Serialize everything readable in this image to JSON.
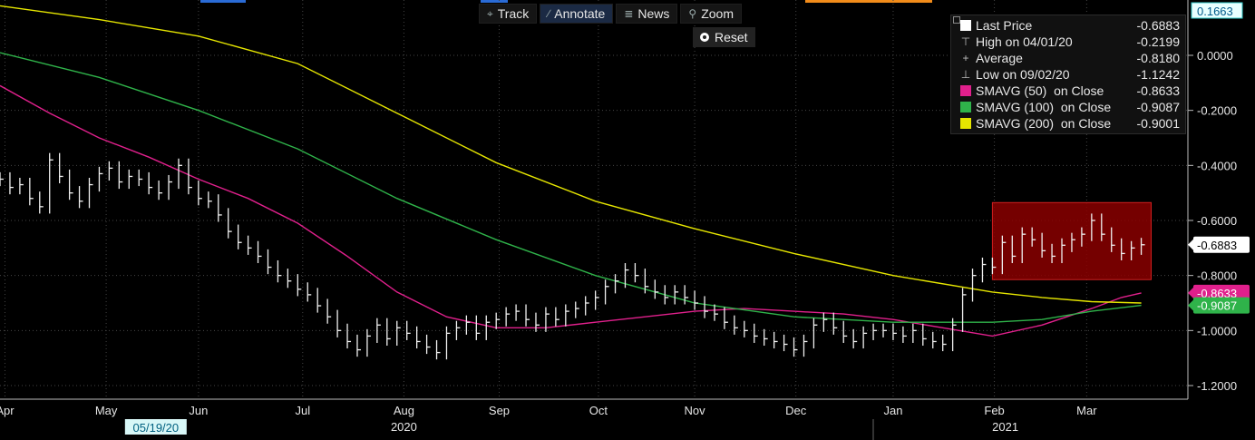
{
  "toolbar": {
    "buttons": [
      {
        "icon": "crosshair-icon",
        "label": "Track",
        "active": false
      },
      {
        "icon": "pencil-icon",
        "label": "Annotate",
        "active": true
      },
      {
        "icon": "news-icon",
        "label": "News",
        "active": false
      },
      {
        "icon": "magnifier-icon",
        "label": "Zoom",
        "active": false
      }
    ],
    "reset_label": "Reset"
  },
  "legend": {
    "rows": [
      {
        "icon": "square",
        "color": "#ffffff",
        "label": "Last Price",
        "value": "-0.6883"
      },
      {
        "icon": "high-marker-icon",
        "label": "High on 04/01/20",
        "value": "-0.2199"
      },
      {
        "icon": "average-marker-icon",
        "label": "Average",
        "value": "-0.8180"
      },
      {
        "icon": "low-marker-icon",
        "label": "Low on 09/02/20",
        "value": "-1.1242"
      },
      {
        "icon": "square",
        "color": "#e0208c",
        "label": "SMAVG (50)  on Close",
        "value": "-0.8633"
      },
      {
        "icon": "square",
        "color": "#2fb34a",
        "label": "SMAVG (100)  on Close",
        "value": "-0.9087"
      },
      {
        "icon": "square",
        "color": "#e6e600",
        "label": "SMAVG (200)  on Close",
        "value": "-0.9001"
      }
    ]
  },
  "chart_data": {
    "type": "line",
    "y_axis": {
      "min": -1.25,
      "max": 0.2,
      "ticks": [
        "0.0000",
        "-0.2000",
        "-0.4000",
        "-0.6000",
        "-0.8000",
        "-1.0000",
        "-1.2000"
      ],
      "tick_values": [
        0,
        -0.2,
        -0.4,
        -0.6,
        -0.8,
        -1.0,
        -1.2
      ],
      "top_label": "0.1663",
      "position": "right"
    },
    "x_axis": {
      "months": [
        "Apr",
        "May",
        "Jun",
        "Jul",
        "Aug",
        "Sep",
        "Oct",
        "Nov",
        "Dec",
        "Jan",
        "Feb",
        "Mar"
      ],
      "month_index": [
        0.05,
        1.07,
        2.0,
        3.05,
        4.07,
        5.03,
        6.03,
        7.0,
        8.02,
        9.0,
        10.02,
        10.95
      ],
      "years": [
        {
          "label": "2020",
          "at": 4.07
        },
        {
          "label": "2021",
          "at": 10.13
        }
      ],
      "cursor_label": "05/19/20",
      "cursor_at": 1.57,
      "start": "2020-04-01",
      "end": "2021-03-19"
    },
    "series": [
      {
        "name": "Last Price",
        "color": "#ffffff",
        "style": "hl-bars",
        "x": [
          0,
          0.1,
          0.2,
          0.3,
          0.4,
          0.5,
          0.6,
          0.7,
          0.8,
          0.9,
          1.0,
          1.1,
          1.2,
          1.3,
          1.4,
          1.5,
          1.6,
          1.7,
          1.8,
          1.9,
          2.0,
          2.1,
          2.2,
          2.3,
          2.4,
          2.5,
          2.6,
          2.7,
          2.8,
          2.9,
          3.0,
          3.1,
          3.2,
          3.3,
          3.4,
          3.5,
          3.6,
          3.7,
          3.8,
          3.9,
          4.0,
          4.1,
          4.2,
          4.3,
          4.4,
          4.5,
          4.6,
          4.7,
          4.8,
          4.9,
          5.0,
          5.1,
          5.2,
          5.3,
          5.4,
          5.5,
          5.6,
          5.7,
          5.8,
          5.9,
          6.0,
          6.1,
          6.2,
          6.3,
          6.4,
          6.5,
          6.6,
          6.7,
          6.8,
          6.9,
          7.0,
          7.1,
          7.2,
          7.3,
          7.4,
          7.5,
          7.6,
          7.7,
          7.8,
          7.9,
          8.0,
          8.1,
          8.2,
          8.3,
          8.4,
          8.5,
          8.6,
          8.7,
          8.8,
          8.9,
          9.0,
          9.1,
          9.2,
          9.3,
          9.4,
          9.5,
          9.6,
          9.7,
          9.8,
          9.9,
          10.0,
          10.1,
          10.2,
          10.3,
          10.4,
          10.5,
          10.6,
          10.7,
          10.8,
          10.9,
          11.0,
          11.1,
          11.2,
          11.3,
          11.4,
          11.5
        ],
        "values": [
          -0.45,
          -0.48,
          -0.47,
          -0.52,
          -0.55,
          -0.38,
          -0.44,
          -0.5,
          -0.53,
          -0.47,
          -0.43,
          -0.41,
          -0.46,
          -0.44,
          -0.45,
          -0.48,
          -0.5,
          -0.46,
          -0.4,
          -0.48,
          -0.52,
          -0.53,
          -0.58,
          -0.64,
          -0.68,
          -0.7,
          -0.73,
          -0.77,
          -0.8,
          -0.82,
          -0.85,
          -0.87,
          -0.91,
          -0.95,
          -1.0,
          -1.04,
          -1.07,
          -1.02,
          -0.98,
          -1.03,
          -0.99,
          -1.01,
          -1.04,
          -1.06,
          -1.08,
          -1.01,
          -0.99,
          -0.97,
          -1.01,
          -0.97,
          -0.96,
          -0.94,
          -0.93,
          -0.96,
          -0.98,
          -0.94,
          -0.96,
          -0.93,
          -0.92,
          -0.9,
          -0.88,
          -0.84,
          -0.82,
          -0.78,
          -0.8,
          -0.84,
          -0.86,
          -0.88,
          -0.86,
          -0.88,
          -0.9,
          -0.93,
          -0.94,
          -0.97,
          -0.99,
          -1.0,
          -1.02,
          -1.03,
          -1.04,
          -1.05,
          -1.07,
          -1.04,
          -0.98,
          -0.96,
          -0.99,
          -1.02,
          -1.04,
          -1.01,
          -1.0,
          -1.0,
          -1.01,
          -1.02,
          -1.0,
          -1.03,
          -1.04,
          -1.05,
          -0.98,
          -0.87,
          -0.8,
          -0.76,
          -0.77,
          -0.68,
          -0.73,
          -0.65,
          -0.67,
          -0.71,
          -0.73,
          -0.69,
          -0.67,
          -0.65,
          -0.6,
          -0.65,
          -0.69,
          -0.72,
          -0.7,
          -0.6883
        ]
      },
      {
        "name": "SMAVG (50)  on Close",
        "color": "#e0208c",
        "style": "line",
        "x": [
          0,
          0.5,
          1.0,
          1.5,
          2.0,
          2.5,
          3.0,
          3.5,
          4.0,
          4.5,
          5.0,
          5.5,
          6.0,
          6.5,
          7.0,
          7.5,
          8.0,
          8.5,
          9.0,
          9.5,
          10.0,
          10.5,
          11.0,
          11.3,
          11.5
        ],
        "values": [
          -0.11,
          -0.21,
          -0.3,
          -0.37,
          -0.45,
          -0.52,
          -0.61,
          -0.73,
          -0.86,
          -0.95,
          -0.99,
          -0.99,
          -0.97,
          -0.95,
          -0.93,
          -0.92,
          -0.93,
          -0.94,
          -0.96,
          -0.99,
          -1.02,
          -0.98,
          -0.92,
          -0.88,
          -0.8633
        ]
      },
      {
        "name": "SMAVG (100)  on Close",
        "color": "#2fb34a",
        "style": "line",
        "x": [
          0,
          1.0,
          2.0,
          3.0,
          4.0,
          5.0,
          6.0,
          7.0,
          8.0,
          9.0,
          10.0,
          10.5,
          11.0,
          11.5
        ],
        "values": [
          0.01,
          -0.08,
          -0.2,
          -0.34,
          -0.52,
          -0.67,
          -0.8,
          -0.9,
          -0.95,
          -0.97,
          -0.97,
          -0.96,
          -0.93,
          -0.9087
        ]
      },
      {
        "name": "SMAVG (200)  on Close",
        "color": "#e6e600",
        "style": "line",
        "x": [
          0,
          1.0,
          2.0,
          3.0,
          4.0,
          5.0,
          6.0,
          7.0,
          8.0,
          9.0,
          10.0,
          10.5,
          11.0,
          11.5
        ],
        "values": [
          0.18,
          0.13,
          0.07,
          -0.03,
          -0.21,
          -0.39,
          -0.53,
          -0.63,
          -0.72,
          -0.8,
          -0.86,
          -0.88,
          -0.895,
          -0.9001
        ]
      }
    ],
    "highlight_box": {
      "x0": 10.0,
      "x1": 11.6,
      "y0": -0.535,
      "y1": -0.815,
      "color": "#b00000"
    },
    "value_tags": [
      {
        "value": "-0.6883",
        "level": -0.6883,
        "color": "#ffffff",
        "text_color": "#000000"
      },
      {
        "value": "-0.8633",
        "level": -0.8633,
        "color": "#e0208c",
        "text_color": "#ffffff"
      },
      {
        "value": "-0.9087",
        "level": -0.9087,
        "color": "#2fb34a",
        "text_color": "#ffffff"
      }
    ],
    "grid": true,
    "legend_position": "top-right"
  }
}
